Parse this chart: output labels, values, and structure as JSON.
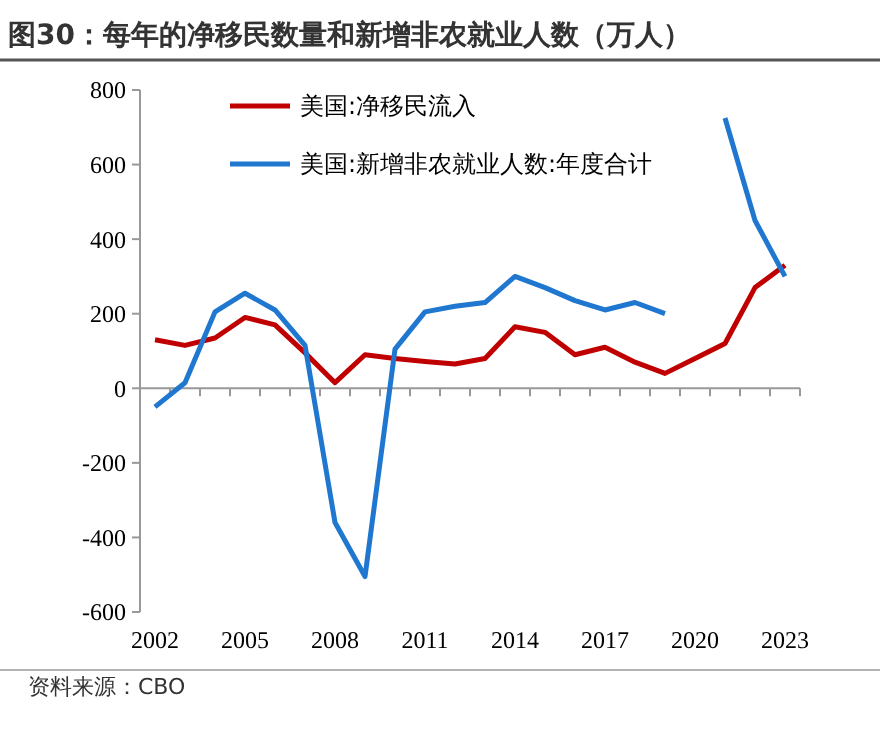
{
  "chart_data": {
    "type": "line",
    "title": "图30：每年的净移民数量和新增非农就业人数（万人）",
    "categories": [
      "2002",
      null,
      null,
      "2005",
      null,
      null,
      "2008",
      null,
      null,
      "2011",
      null,
      null,
      "2014",
      null,
      null,
      "2017",
      null,
      null,
      "2020",
      null,
      null,
      "2023"
    ],
    "series": [
      {
        "name": "美国:净移民流入",
        "color": "#c00000",
        "values": [
          130,
          115,
          135,
          190,
          170,
          95,
          15,
          90,
          80,
          72,
          65,
          80,
          165,
          150,
          90,
          110,
          70,
          40,
          80,
          120,
          270,
          330
        ]
      },
      {
        "name": "美国:新增非农就业人数:年度合计",
        "color": "#1f77d0",
        "values": [
          -50,
          15,
          205,
          255,
          210,
          115,
          -360,
          -505,
          105,
          205,
          220,
          230,
          300,
          270,
          235,
          210,
          230,
          200,
          null,
          725,
          450,
          300
        ]
      }
    ],
    "ylim": [
      -600,
      800
    ],
    "yticks": [
      -600,
      -400,
      -200,
      0,
      200,
      400,
      600,
      800
    ],
    "legend": "top left",
    "marker": "none",
    "line_style": "solid",
    "annotations": [
      "资料来源：CBO"
    ]
  }
}
